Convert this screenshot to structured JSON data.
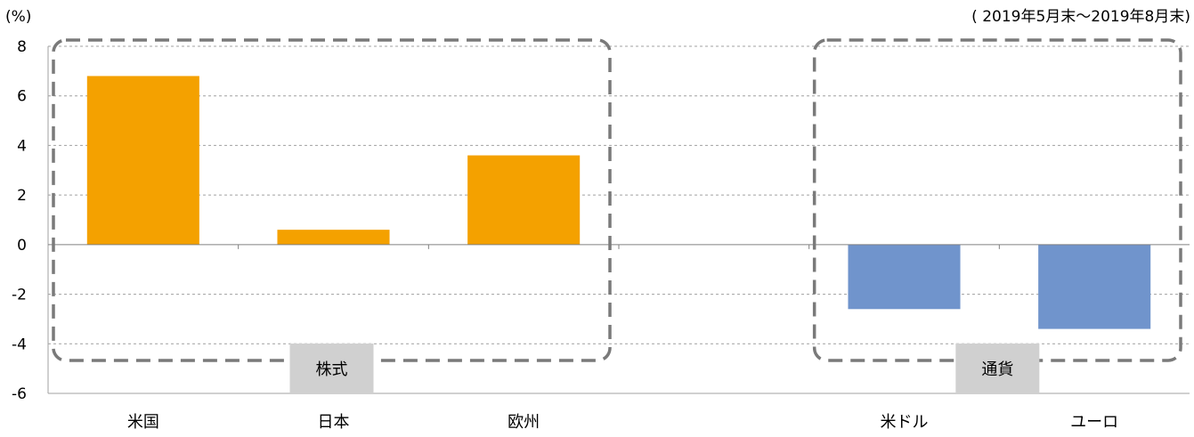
{
  "chart_data": {
    "type": "bar",
    "unit_label": "(%)",
    "period_label": "( 2019年5月末～2019年8月末)",
    "categories": [
      "米国",
      "日本",
      "欧州",
      "",
      "米ドル",
      "ユーロ"
    ],
    "values": [
      6.8,
      0.6,
      3.6,
      null,
      -2.6,
      -3.4
    ],
    "bar_colors": [
      "#F4A100",
      "#F4A100",
      "#F4A100",
      null,
      "#7094CC",
      "#7094CC"
    ],
    "ylim": [
      -6,
      8
    ],
    "yticks": [
      8,
      6,
      4,
      2,
      0,
      -2,
      -4,
      -6
    ],
    "grid": true,
    "groups": [
      {
        "label": "株式",
        "categories": [
          "米国",
          "日本",
          "欧州"
        ]
      },
      {
        "label": "通貨",
        "categories": [
          "米ドル",
          "ユーロ"
        ]
      }
    ],
    "colors": {
      "equity": "#F4A100",
      "currency": "#7094CC",
      "group_box": "#7A7A7A",
      "group_label_bg": "#D0D0D0",
      "grid": "#A0A0A0"
    }
  }
}
